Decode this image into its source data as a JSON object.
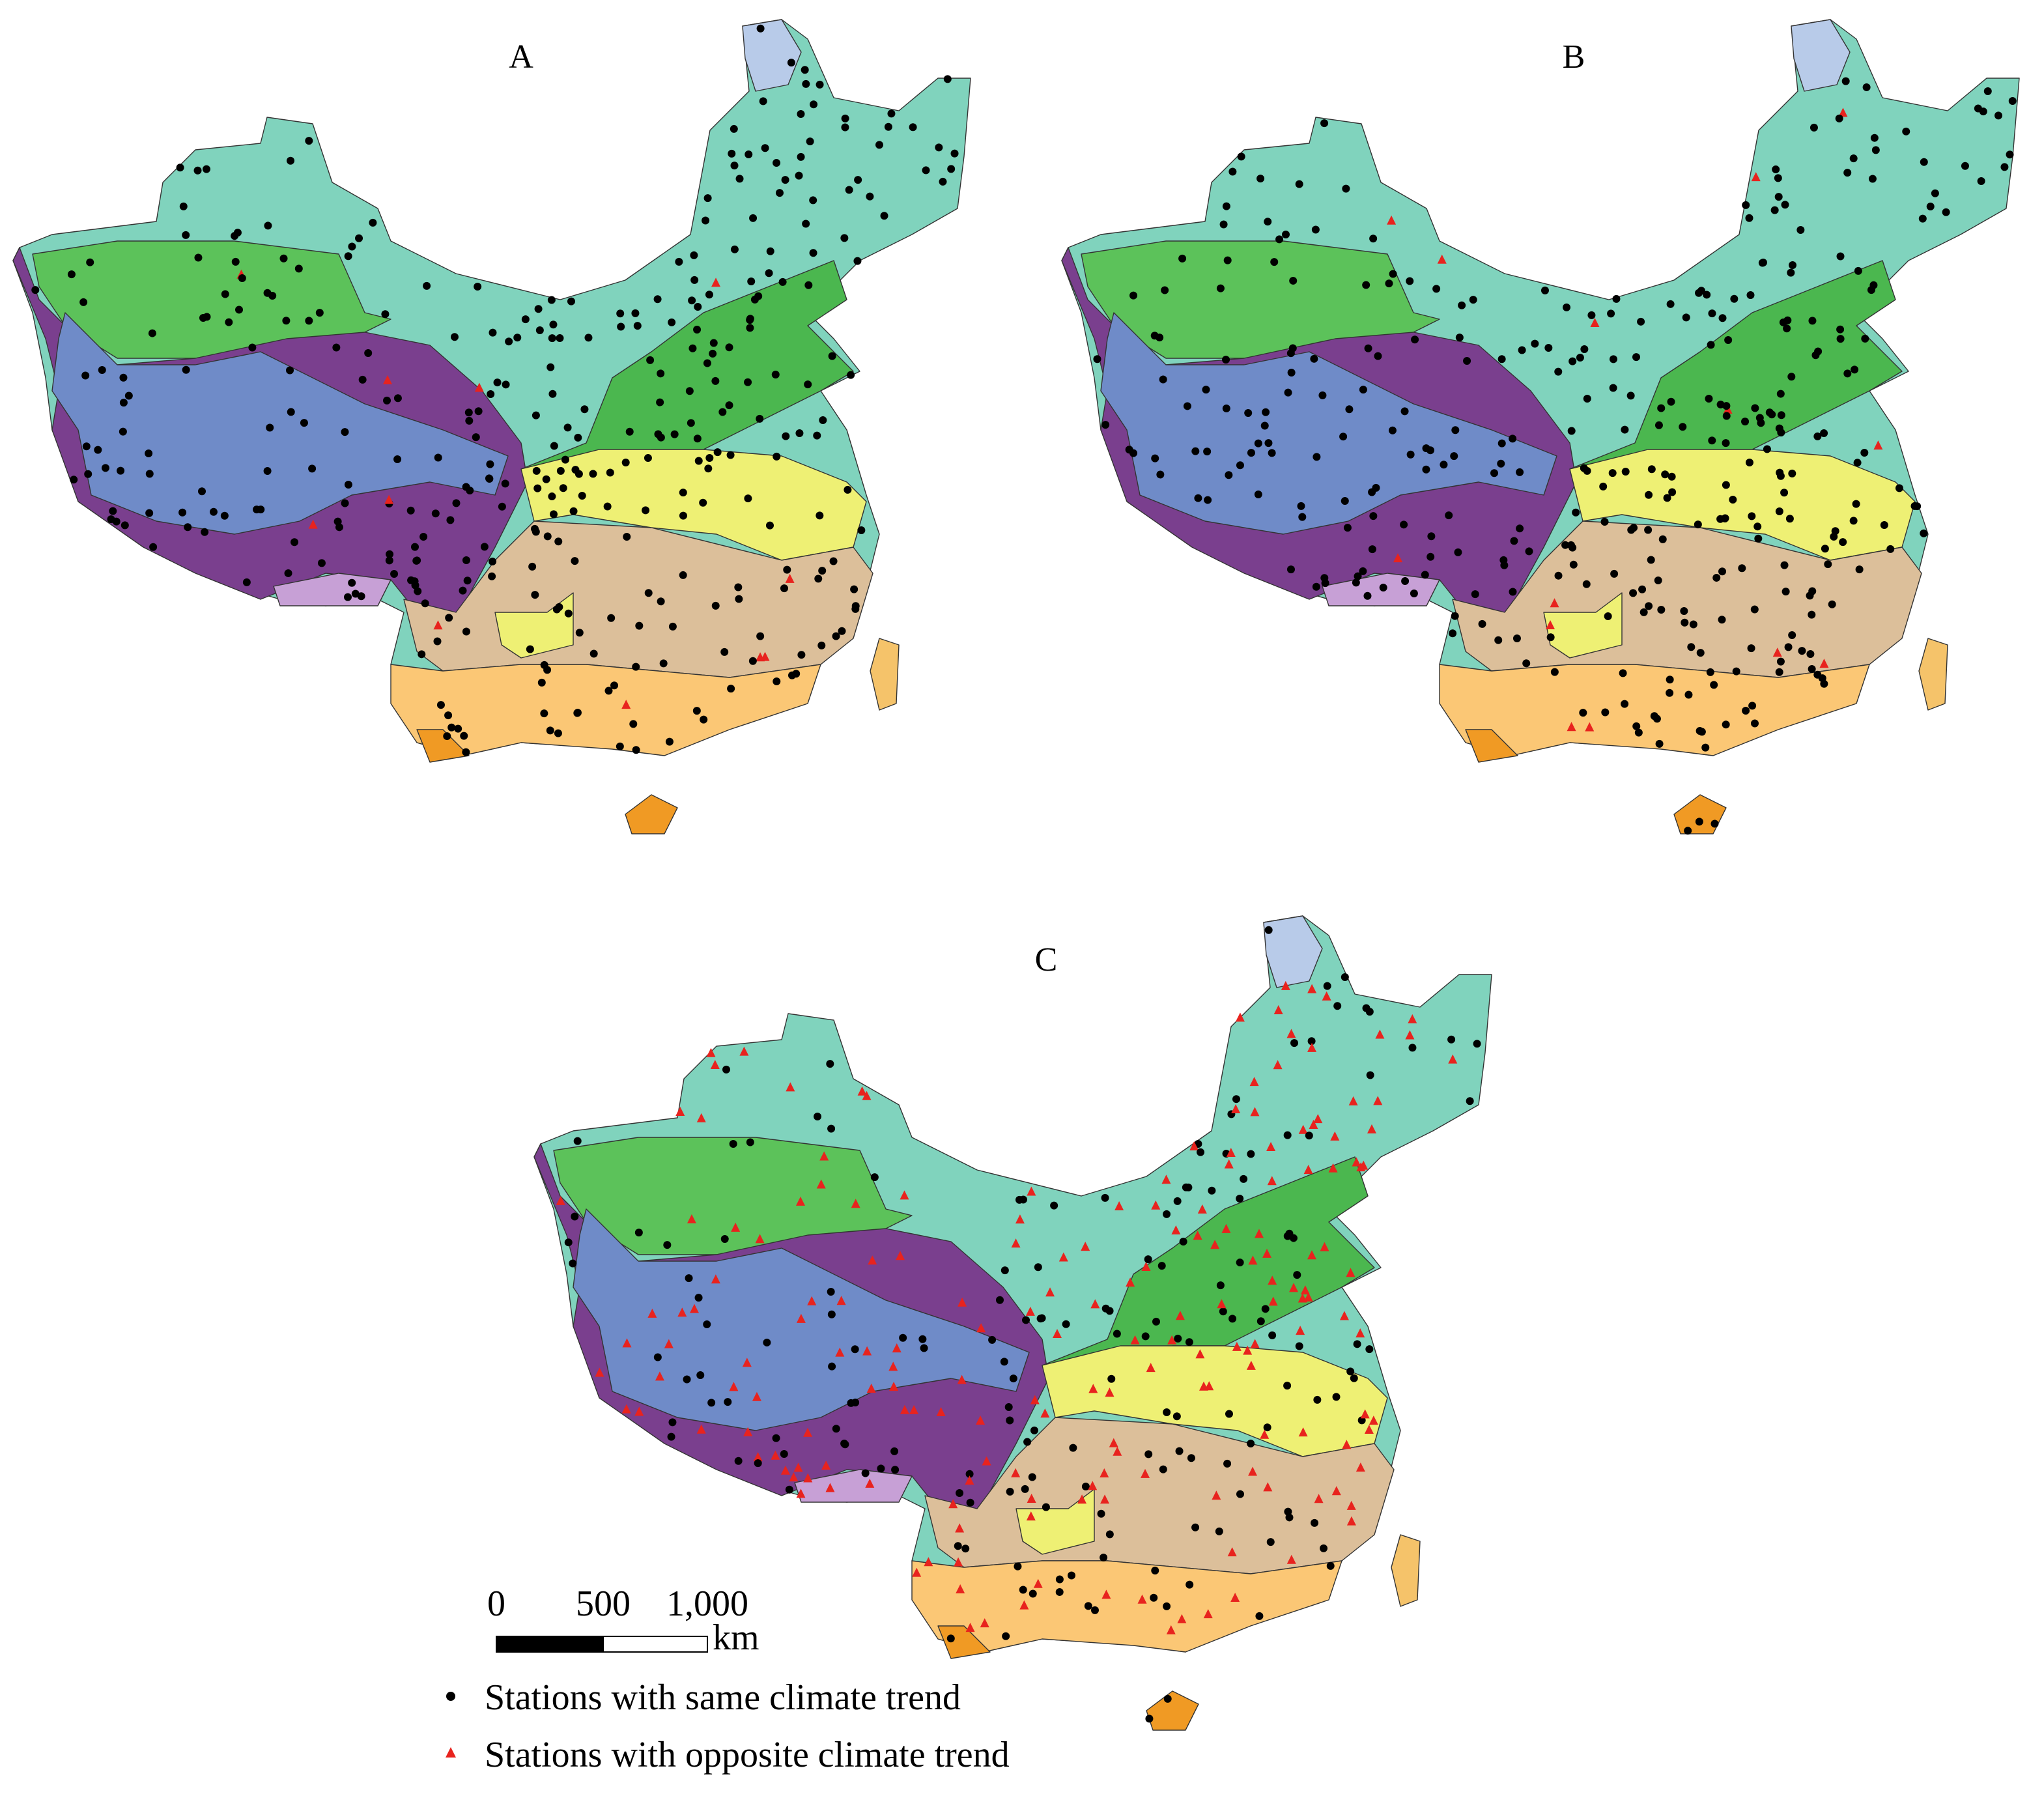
{
  "panels": [
    {
      "label": "A"
    },
    {
      "label": "B"
    },
    {
      "label": "C"
    }
  ],
  "scale_bar": {
    "ticks": [
      "0",
      "500",
      "1,000"
    ],
    "unit": "km"
  },
  "legend": {
    "items": [
      {
        "label": "Stations with same climate trend"
      },
      {
        "label": "Stations with opposite climate trend"
      }
    ]
  }
}
